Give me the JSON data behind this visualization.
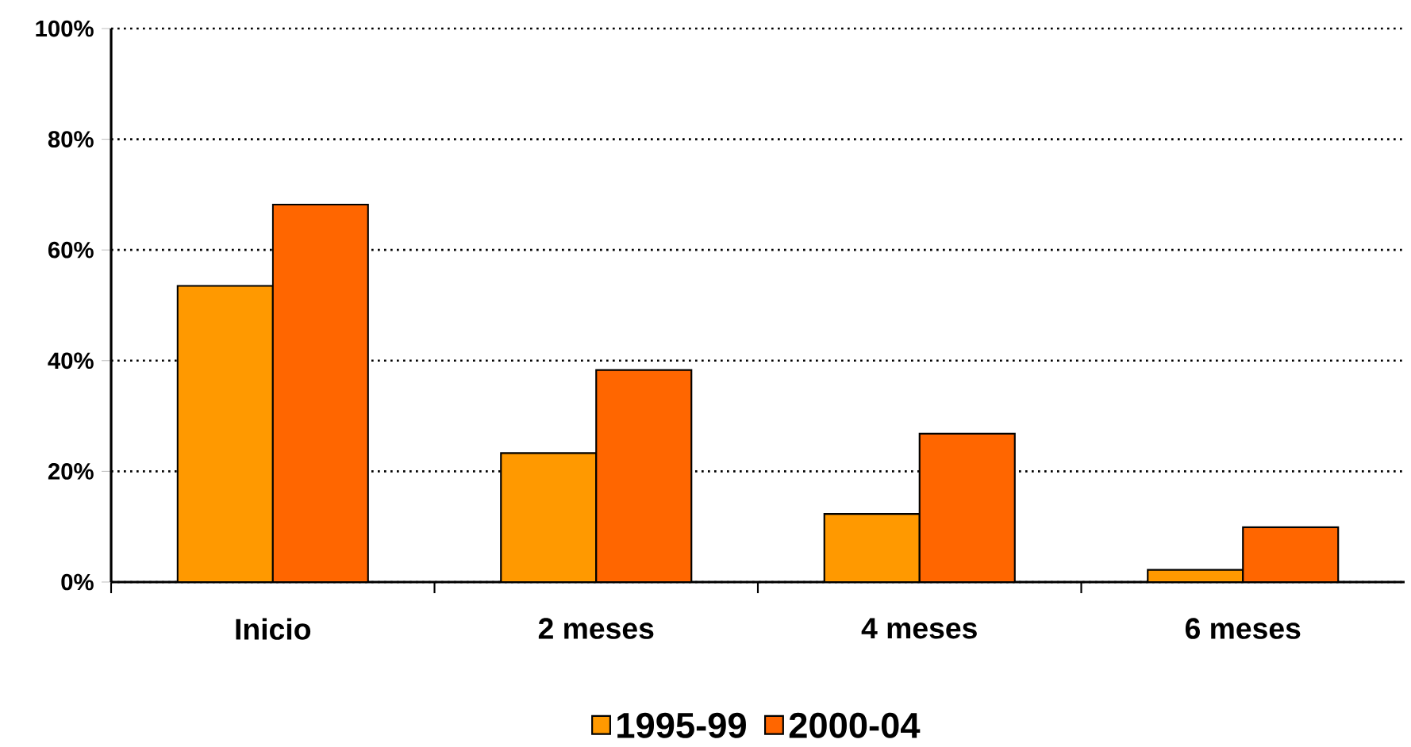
{
  "chart_data": {
    "type": "bar",
    "categories": [
      "Inicio",
      "2 meses",
      "4 meses",
      "6 meses"
    ],
    "series": [
      {
        "name": "1995-99",
        "color": "#ff9900",
        "values": [
          53.5,
          23.3,
          12.3,
          2.2
        ]
      },
      {
        "name": "2000-04",
        "color": "#ff6600",
        "values": [
          68.2,
          38.3,
          26.8,
          9.9
        ]
      }
    ],
    "ylim": [
      0,
      100
    ],
    "yticks": [
      {
        "value": 0,
        "label": "0%"
      },
      {
        "value": 20,
        "label": "20%"
      },
      {
        "value": 40,
        "label": "40%"
      },
      {
        "value": 60,
        "label": "60%"
      },
      {
        "value": 80,
        "label": "80%"
      },
      {
        "value": 100,
        "label": "100%"
      }
    ],
    "grid": "y",
    "line_style": "dotted",
    "legend": "bottom"
  }
}
